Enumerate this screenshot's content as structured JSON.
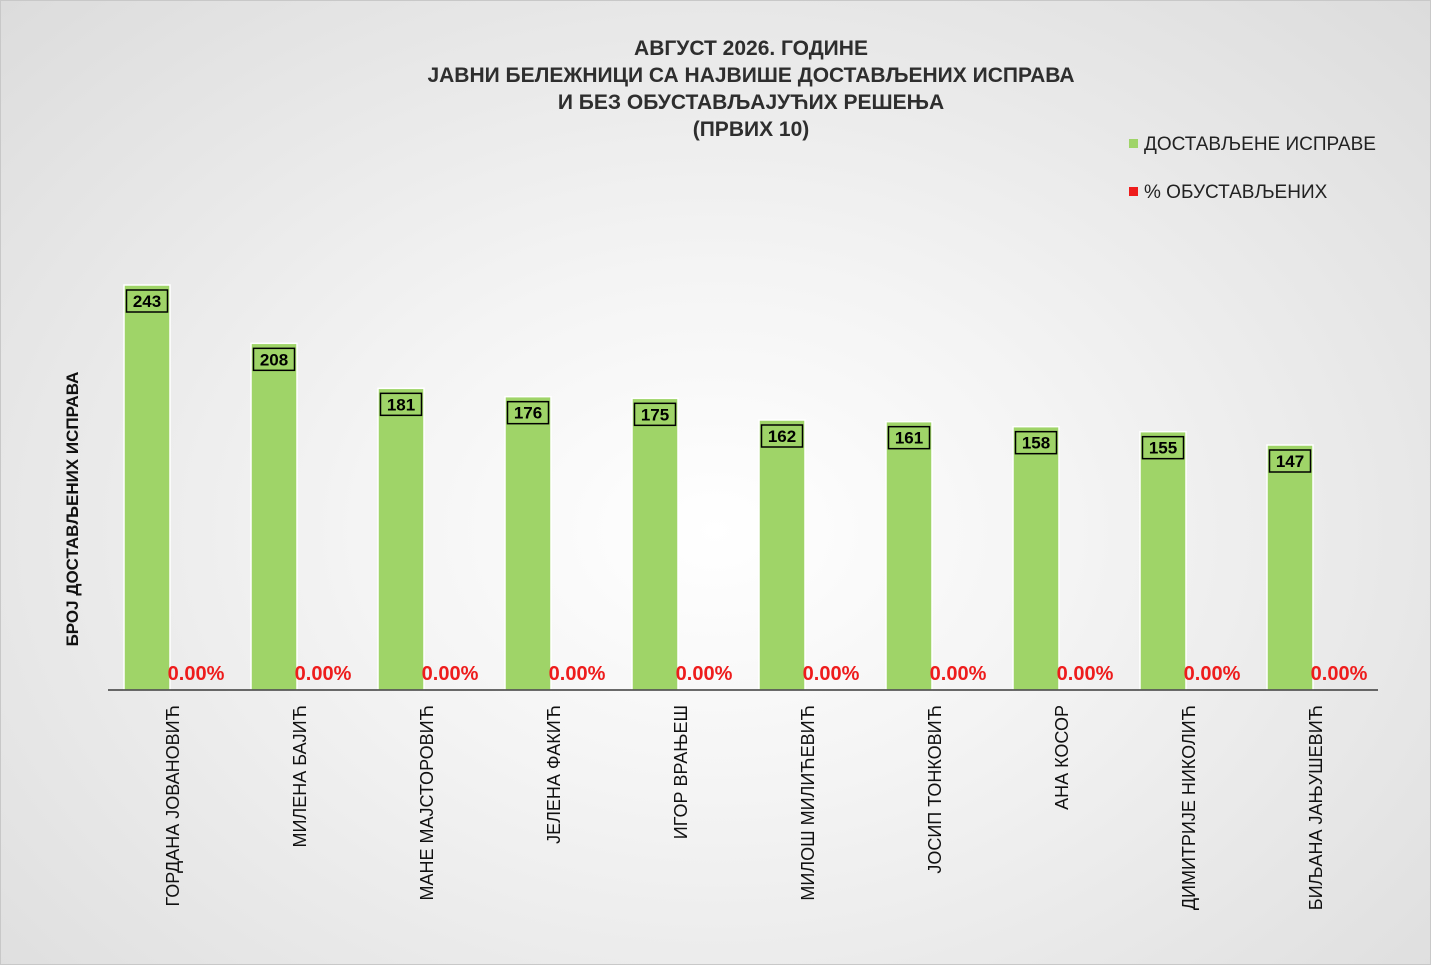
{
  "chart_data": {
    "type": "bar",
    "title_lines": [
      "АВГУСТ 2026. ГОДИНЕ",
      "ЈАВНИ БЕЛЕЖНИЦИ СА НАЈВИШЕ ДОСТАВЉЕНИХ ИСПРАВА",
      "И БЕЗ ОБУСТАВЉАЈУЋИХ РЕШЕЊА",
      "(ПРВИХ 10)"
    ],
    "ylabel": "БРОЈ ДОСТАВЉЕНИХ ИСПРАВА",
    "xlabel": "",
    "ylim": [
      0,
      300
    ],
    "grid": false,
    "legend_position": "top-right",
    "categories": [
      "ГОРДАНА ЈОВАНОВИЋ",
      "МИЛЕНА БАЈИЋ",
      "МАНЕ МАЈСТОРОВИЋ",
      "ЈЕЛЕНА ФАКИЋ",
      "ИГОР ВРАЊЕШ",
      "МИЛОШ МИЛИЋЕВИЋ",
      "ЈОСИП ТОНКОВИЋ",
      "АНА КОСОР",
      "ДИМИТРИЈЕ НИКОЛИЋ",
      "БИЉАНА ЈАЊУШЕВИЋ"
    ],
    "series": [
      {
        "name": "ДОСТАВЉЕНЕ ИСПРАВЕ",
        "color": "#9fd468",
        "values": [
          243,
          208,
          181,
          176,
          175,
          162,
          161,
          158,
          155,
          147
        ],
        "labels": [
          "243",
          "208",
          "181",
          "176",
          "175",
          "162",
          "161",
          "158",
          "155",
          "147"
        ]
      },
      {
        "name": "% ОБУСТАВЉЕНИХ",
        "color": "#ee1c1c",
        "values": [
          0,
          0,
          0,
          0,
          0,
          0,
          0,
          0,
          0,
          0
        ],
        "labels": [
          "0.00%",
          "0.00%",
          "0.00%",
          "0.00%",
          "0.00%",
          "0.00%",
          "0.00%",
          "0.00%",
          "0.00%",
          "0.00%"
        ]
      }
    ]
  }
}
